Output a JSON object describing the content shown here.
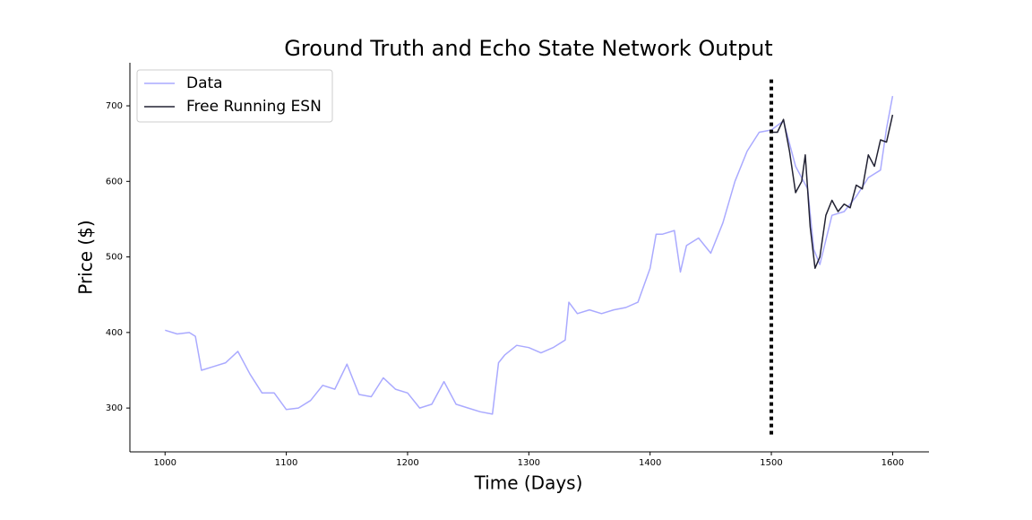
{
  "chart_data": {
    "type": "line",
    "title": "Ground Truth and Echo State Network Output",
    "xlabel": "Time (Days)",
    "ylabel": "Price ($)",
    "xlim": [
      971,
      1630
    ],
    "ylim": [
      242,
      757
    ],
    "xticks": [
      1000,
      1100,
      1200,
      1300,
      1400,
      1500,
      1600
    ],
    "yticks": [
      300,
      400,
      500,
      600,
      700
    ],
    "legend": "upper left",
    "vline": {
      "x": 1500,
      "ymin": 265,
      "ymax": 735,
      "color": "#000000"
    },
    "series": [
      {
        "name": "Data",
        "color": "#aaaaff",
        "x": [
          1000,
          1010,
          1020,
          1025,
          1030,
          1040,
          1050,
          1060,
          1070,
          1080,
          1090,
          1100,
          1110,
          1120,
          1130,
          1140,
          1150,
          1160,
          1170,
          1180,
          1190,
          1200,
          1210,
          1220,
          1230,
          1240,
          1250,
          1260,
          1270,
          1275,
          1280,
          1290,
          1300,
          1310,
          1320,
          1330,
          1333,
          1340,
          1350,
          1360,
          1370,
          1380,
          1390,
          1400,
          1405,
          1410,
          1420,
          1425,
          1430,
          1440,
          1450,
          1460,
          1470,
          1480,
          1490,
          1500,
          1510,
          1520,
          1530,
          1535,
          1540,
          1550,
          1560,
          1570,
          1580,
          1590,
          1595,
          1600
        ],
        "values": [
          403,
          398,
          400,
          395,
          350,
          355,
          360,
          375,
          345,
          320,
          320,
          298,
          300,
          310,
          330,
          325,
          358,
          318,
          315,
          340,
          325,
          320,
          300,
          305,
          335,
          305,
          300,
          295,
          292,
          360,
          370,
          383,
          380,
          373,
          380,
          390,
          440,
          425,
          430,
          425,
          430,
          433,
          440,
          485,
          530,
          530,
          535,
          480,
          515,
          525,
          505,
          545,
          600,
          640,
          665,
          668,
          680,
          620,
          590,
          510,
          490,
          555,
          560,
          580,
          605,
          615,
          670,
          713
        ]
      },
      {
        "name": "Free Running ESN",
        "color": "#222233",
        "x": [
          1500,
          1505,
          1510,
          1515,
          1520,
          1525,
          1528,
          1532,
          1536,
          1540,
          1545,
          1550,
          1555,
          1560,
          1565,
          1570,
          1575,
          1580,
          1585,
          1590,
          1595,
          1600
        ],
        "values": [
          665,
          665,
          682,
          640,
          585,
          600,
          635,
          540,
          485,
          500,
          555,
          575,
          560,
          570,
          565,
          595,
          590,
          635,
          620,
          655,
          652,
          688
        ]
      }
    ]
  }
}
